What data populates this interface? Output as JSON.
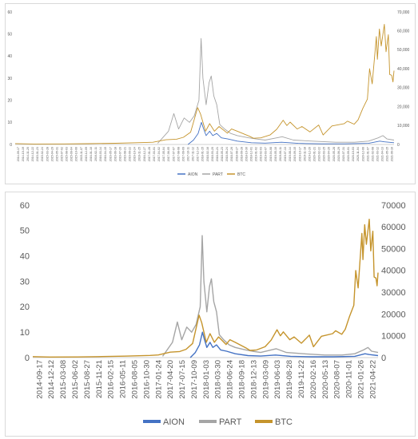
{
  "chart_data": [
    {
      "type": "line",
      "title": "",
      "xlabel": "",
      "ylabel": "",
      "y_left_range": [
        0,
        60
      ],
      "y_left_ticks": [
        "0",
        "10",
        "20",
        "30",
        "40",
        "50",
        "60"
      ],
      "y_right_range": [
        0,
        70000
      ],
      "y_right_ticks": [
        "0",
        "10,000",
        "20,000",
        "30,000",
        "40,000",
        "50,000",
        "60,000",
        "70,000"
      ],
      "x_tick_labels": [
        "2014-09-17",
        "2014-10-19",
        "2014-11-20",
        "2014-12-22",
        "2015-01-23",
        "2015-02-24",
        "2015-03-28",
        "2015-04-29",
        "2015-05-31",
        "2015-07-02",
        "2015-08-03",
        "2015-09-04",
        "2015-10-06",
        "2015-11-07",
        "2015-12-09",
        "2016-01-10",
        "2016-02-11",
        "2016-03-14",
        "2016-04-15",
        "2016-05-17",
        "2016-06-18",
        "2016-07-20",
        "2016-08-21",
        "2016-09-22",
        "2016-10-24",
        "2016-11-25",
        "2016-12-27",
        "2017-01-28",
        "2017-03-01",
        "2017-04-02",
        "2017-05-04",
        "2017-06-05",
        "2017-07-07",
        "2017-08-08",
        "2017-09-09",
        "2017-10-11",
        "2017-11-12",
        "2017-12-14",
        "2018-01-15",
        "2018-02-16",
        "2018-03-20",
        "2018-04-21",
        "2018-05-23",
        "2018-06-24",
        "2018-07-26",
        "2018-08-27",
        "2018-09-28",
        "2018-10-30",
        "2018-12-01",
        "2019-01-02",
        "2019-02-03",
        "2019-03-07",
        "2019-04-08",
        "2019-05-10",
        "2019-06-11",
        "2019-07-13",
        "2019-08-14",
        "2019-09-15",
        "2019-10-17",
        "2019-11-18",
        "2019-12-20",
        "2020-01-21",
        "2020-02-22",
        "2020-03-25",
        "2020-04-26",
        "2020-05-28",
        "2020-06-29",
        "2020-07-31",
        "2020-09-01",
        "2020-10-03",
        "2020-11-04",
        "2020-12-06",
        "2021-01-07",
        "2021-02-08",
        "2021-03-12",
        "2021-04-13",
        "2021-05-15",
        "2021-06-16"
      ],
      "x_range": [
        "2014-09-17",
        "2021-06-16"
      ],
      "legend_position": "bottom",
      "series": [
        {
          "name": "AION",
          "color": "#4472c4",
          "axis": "left",
          "points": [
            [
              "2017-10-15",
              0
            ],
            [
              "2017-11-20",
              2
            ],
            [
              "2017-12-20",
              5
            ],
            [
              "2018-01-10",
              10
            ],
            [
              "2018-01-25",
              7
            ],
            [
              "2018-02-10",
              4
            ],
            [
              "2018-03-05",
              6
            ],
            [
              "2018-03-25",
              4
            ],
            [
              "2018-04-20",
              5
            ],
            [
              "2018-05-20",
              3
            ],
            [
              "2018-07-01",
              2.5
            ],
            [
              "2018-09-01",
              1.5
            ],
            [
              "2018-12-01",
              0.8
            ],
            [
              "2019-03-01",
              0.6
            ],
            [
              "2019-06-15",
              1
            ],
            [
              "2019-10-01",
              0.5
            ],
            [
              "2020-03-01",
              0.3
            ],
            [
              "2020-08-01",
              0.3
            ],
            [
              "2021-01-01",
              0.5
            ],
            [
              "2021-03-15",
              1.5
            ],
            [
              "2021-04-15",
              1.2
            ],
            [
              "2021-06-16",
              0.8
            ]
          ]
        },
        {
          "name": "PART",
          "color": "#a5a5a5",
          "axis": "left",
          "points": [
            [
              "2017-04-01",
              0.5
            ],
            [
              "2017-06-10",
              6
            ],
            [
              "2017-07-15",
              14
            ],
            [
              "2017-08-15",
              7
            ],
            [
              "2017-09-20",
              12
            ],
            [
              "2017-10-25",
              10
            ],
            [
              "2017-11-25",
              13
            ],
            [
              "2017-12-25",
              20
            ],
            [
              "2018-01-08",
              48
            ],
            [
              "2018-01-20",
              30
            ],
            [
              "2018-02-10",
              18
            ],
            [
              "2018-03-01",
              28
            ],
            [
              "2018-03-15",
              31
            ],
            [
              "2018-04-01",
              22
            ],
            [
              "2018-04-20",
              18
            ],
            [
              "2018-05-10",
              9
            ],
            [
              "2018-06-10",
              7
            ],
            [
              "2018-07-20",
              5
            ],
            [
              "2018-09-01",
              4
            ],
            [
              "2018-11-15",
              3
            ],
            [
              "2019-01-01",
              2.5
            ],
            [
              "2019-03-01",
              2
            ],
            [
              "2019-05-15",
              3
            ],
            [
              "2019-06-20",
              3.5
            ],
            [
              "2019-09-01",
              2
            ],
            [
              "2020-01-01",
              1.5
            ],
            [
              "2020-06-01",
              1
            ],
            [
              "2020-10-01",
              1
            ],
            [
              "2021-01-01",
              1.5
            ],
            [
              "2021-03-05",
              3
            ],
            [
              "2021-04-05",
              4
            ],
            [
              "2021-05-01",
              2.5
            ],
            [
              "2021-06-16",
              2
            ]
          ]
        },
        {
          "name": "BTC",
          "color": "#c5942c",
          "axis": "right",
          "points": [
            [
              "2014-09-17",
              450
            ],
            [
              "2015-01-15",
              260
            ],
            [
              "2015-08-01",
              280
            ],
            [
              "2016-01-01",
              430
            ],
            [
              "2016-07-01",
              650
            ],
            [
              "2017-01-01",
              1000
            ],
            [
              "2017-03-01",
              1200
            ],
            [
              "2017-05-25",
              2500
            ],
            [
              "2017-08-01",
              2800
            ],
            [
              "2017-09-15",
              3800
            ],
            [
              "2017-11-01",
              6500
            ],
            [
              "2017-12-17",
              19500
            ],
            [
              "2018-01-05",
              16000
            ],
            [
              "2018-02-06",
              7000
            ],
            [
              "2018-03-05",
              11000
            ],
            [
              "2018-04-05",
              7000
            ],
            [
              "2018-05-05",
              9500
            ],
            [
              "2018-06-28",
              6000
            ],
            [
              "2018-07-25",
              8200
            ],
            [
              "2018-09-01",
              7000
            ],
            [
              "2018-11-20",
              4300
            ],
            [
              "2018-12-15",
              3300
            ],
            [
              "2019-02-01",
              3500
            ],
            [
              "2019-04-02",
              5000
            ],
            [
              "2019-05-15",
              8000
            ],
            [
              "2019-06-26",
              12800
            ],
            [
              "2019-07-20",
              10000
            ],
            [
              "2019-08-10",
              11800
            ],
            [
              "2019-09-25",
              8200
            ],
            [
              "2019-10-26",
              9500
            ],
            [
              "2019-12-17",
              6600
            ],
            [
              "2020-02-12",
              10300
            ],
            [
              "2020-03-12",
              5000
            ],
            [
              "2020-05-08",
              9800
            ],
            [
              "2020-07-27",
              11000
            ],
            [
              "2020-08-17",
              12300
            ],
            [
              "2020-09-30",
              10700
            ],
            [
              "2020-10-25",
              13000
            ],
            [
              "2020-11-25",
              19000
            ],
            [
              "2020-12-25",
              24000
            ],
            [
              "2021-01-08",
              40000
            ],
            [
              "2021-01-25",
              32000
            ],
            [
              "2021-02-21",
              57000
            ],
            [
              "2021-02-28",
              45000
            ],
            [
              "2021-03-13",
              61000
            ],
            [
              "2021-03-25",
              52000
            ],
            [
              "2021-04-14",
              63500
            ],
            [
              "2021-04-25",
              49000
            ],
            [
              "2021-05-10",
              58000
            ],
            [
              "2021-05-19",
              37000
            ],
            [
              "2021-06-01",
              36500
            ],
            [
              "2021-06-09",
              33000
            ],
            [
              "2021-06-16",
              39000
            ]
          ]
        }
      ]
    },
    {
      "type": "line",
      "title": "",
      "xlabel": "",
      "ylabel": "",
      "y_left_range": [
        0,
        60
      ],
      "y_left_ticks": [
        "0",
        "10",
        "20",
        "30",
        "40",
        "50",
        "60"
      ],
      "y_right_range": [
        0,
        70000
      ],
      "y_right_ticks": [
        "0",
        "10000",
        "20000",
        "30000",
        "40000",
        "50000",
        "60000",
        "70000"
      ],
      "x_tick_labels": [
        "2014-09-17",
        "2014-12-12",
        "2015-03-08",
        "2015-06-02",
        "2015-08-27",
        "2015-11-21",
        "2016-02-15",
        "2016-05-11",
        "2016-08-05",
        "2016-10-30",
        "2017-01-24",
        "2017-04-20",
        "2017-07-15",
        "2017-10-09",
        "2018-01-03",
        "2018-03-30",
        "2018-06-24",
        "2018-09-18",
        "2018-12-13",
        "2019-03-09",
        "2019-06-03",
        "2019-08-28",
        "2019-11-22",
        "2020-02-16",
        "2020-05-13",
        "2020-08-07",
        "2020-11-01",
        "2021-01-26",
        "2021-04-22"
      ],
      "x_range": [
        "2014-09-17",
        "2021-06-16"
      ],
      "legend_position": "bottom",
      "series_ref": "same data as chart 1",
      "series_names": [
        "AION",
        "PART",
        "BTC"
      ],
      "series_colors": [
        "#4472c4",
        "#a5a5a5",
        "#c5942c"
      ]
    }
  ]
}
